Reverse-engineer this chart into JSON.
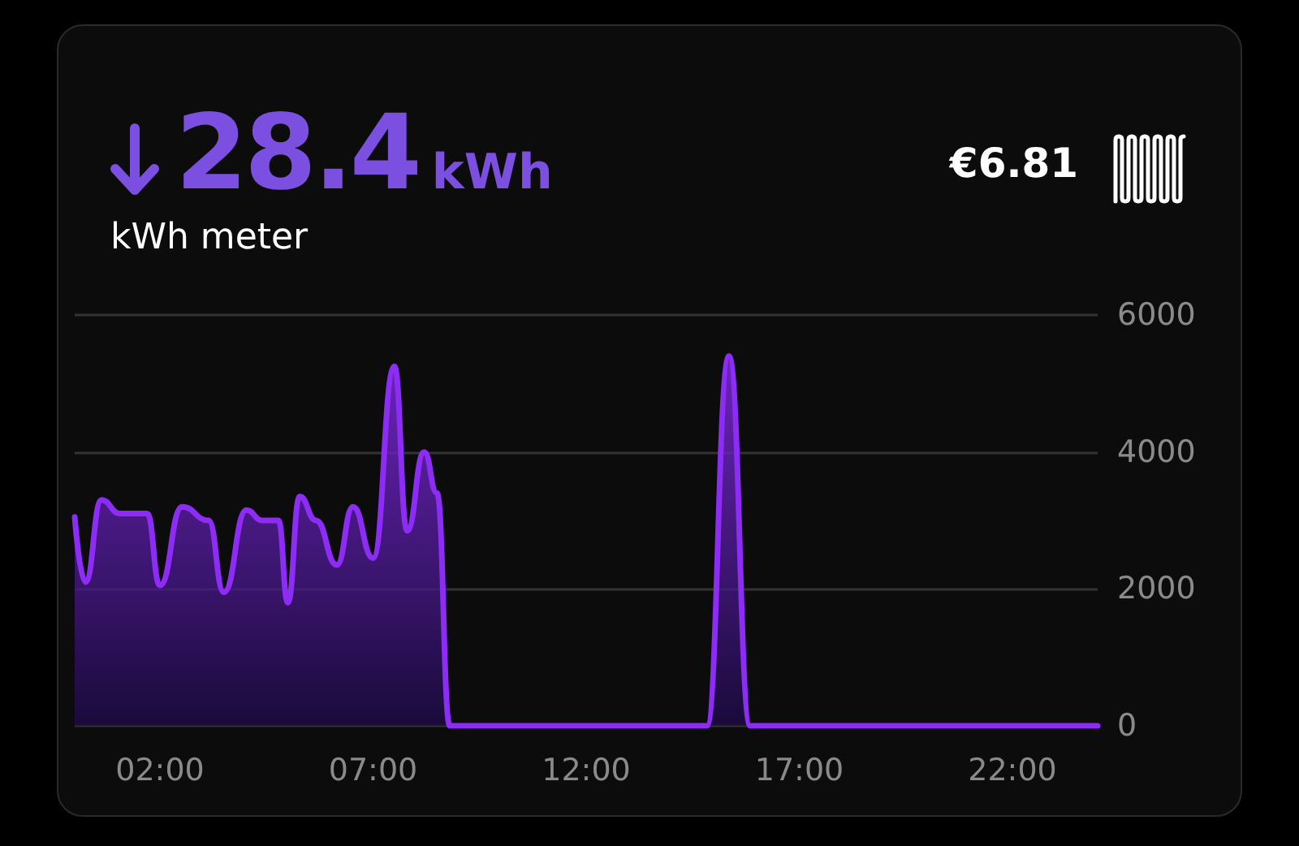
{
  "chart_data": {
    "type": "area",
    "annotations": [
      "28.4",
      "kWh",
      "kWh meter",
      "€6.81"
    ],
    "x": [
      0,
      0.25,
      0.63,
      1.06,
      1.7,
      2.0,
      2.52,
      3.14,
      3.5,
      4.03,
      4.4,
      4.78,
      5.0,
      5.28,
      5.66,
      6.15,
      6.53,
      7.0,
      7.5,
      7.8,
      8.2,
      8.5,
      8.8,
      14.83,
      15.35,
      15.85,
      24
    ],
    "series": [
      {
        "color": "#8c2cf5",
        "values": [
          3050,
          2100,
          3300,
          3100,
          3100,
          2050,
          3200,
          3000,
          1950,
          3150,
          3000,
          3000,
          1800,
          3350,
          3000,
          2350,
          3200,
          2450,
          5250,
          2850,
          4000,
          3400,
          0,
          0,
          5400,
          0,
          0
        ]
      }
    ],
    "xlim": [
      0,
      24
    ],
    "xticks": [
      {
        "value": 2,
        "label": "02:00"
      },
      {
        "value": 7,
        "label": "07:00"
      },
      {
        "value": 12,
        "label": "12:00"
      },
      {
        "value": 17,
        "label": "17:00"
      },
      {
        "value": 22,
        "label": "22:00"
      }
    ],
    "ylim": [
      0,
      6000
    ],
    "yticks": [
      0,
      2000,
      4000,
      6000
    ],
    "grid": "y",
    "marker": "none",
    "line_style": "solid"
  }
}
